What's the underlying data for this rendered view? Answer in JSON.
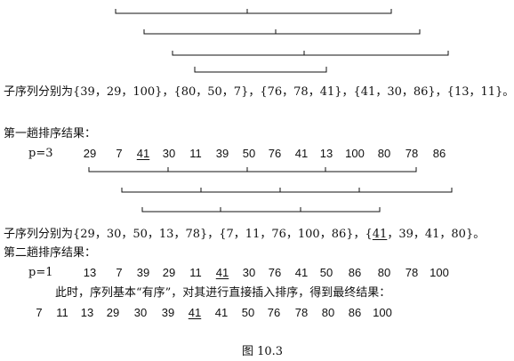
{
  "subseq1": "子序列分别为{39，29，100}，{80，50，7}，{76，78，41}，{41，30，86}，{13，11}。",
  "pass1_title": "第一趟排序结果：",
  "pass1_p": "p=3",
  "pass1_numbers": [
    "29",
    "7",
    "41",
    "30",
    "11",
    "39",
    "50",
    "76",
    "41",
    "13",
    "100",
    "80",
    "78",
    "86"
  ],
  "subseq2_prefix": "子序列分别为{29，30，50，13，78}，{7，11，76，100，86}，{",
  "subseq2_u": "41",
  "subseq2_suffix": "，39，41，80}。",
  "pass2_title": "第二趟排序结果：",
  "pass2_p": "p=1",
  "pass2_numbers": [
    "13",
    "7",
    "39",
    "29",
    "11",
    "41",
    "30",
    "76",
    "41",
    "50",
    "86",
    "80",
    "78",
    "100"
  ],
  "note": "此时，序列基本“有序”，对其进行直接插入排序，得到最终结果：",
  "final_numbers": [
    "7",
    "11",
    "13",
    "29",
    "30",
    "39",
    "41",
    "41",
    "50",
    "76",
    "78",
    "80",
    "86",
    "100"
  ],
  "caption": "图 10.3"
}
